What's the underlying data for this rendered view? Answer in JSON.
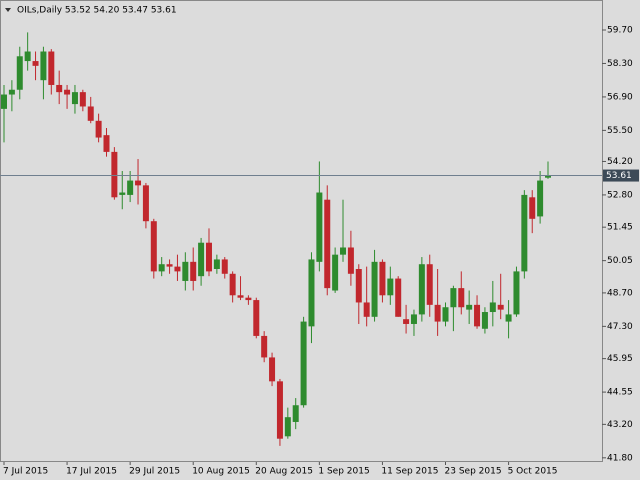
{
  "chart_data": {
    "type": "candlestick",
    "title": "OILs,Daily 53.52 54.20 53.47 53.61",
    "categories": [
      "7 Jul 2015",
      null,
      null,
      null,
      null,
      null,
      null,
      null,
      "17 Jul 2015",
      null,
      null,
      null,
      null,
      null,
      null,
      null,
      "29 Jul 2015",
      null,
      null,
      null,
      null,
      null,
      null,
      null,
      "10 Aug 2015",
      null,
      null,
      null,
      null,
      null,
      null,
      null,
      "20 Aug 2015",
      null,
      null,
      null,
      null,
      null,
      null,
      null,
      "1 Sep 2015",
      null,
      null,
      null,
      null,
      null,
      null,
      null,
      "11 Sep 2015",
      null,
      null,
      null,
      null,
      null,
      null,
      null,
      "23 Sep 2015",
      null,
      null,
      null,
      null,
      null,
      null,
      null,
      "5 Oct 2015",
      null,
      null,
      null,
      null,
      null
    ],
    "open": [
      56.4,
      57.0,
      57.2,
      58.4,
      58.4,
      57.6,
      58.8,
      57.4,
      57.2,
      56.6,
      57.1,
      56.5,
      55.9,
      55.3,
      54.6,
      52.8,
      52.8,
      53.4,
      53.2,
      51.7,
      49.6,
      49.9,
      49.8,
      49.2,
      50.0,
      49.4,
      50.8,
      49.7,
      50.1,
      49.5,
      48.6,
      48.5,
      48.4,
      46.9,
      46.0,
      45.0,
      42.7,
      43.3,
      44.0,
      47.3,
      50.0,
      52.6,
      48.8,
      50.3,
      50.6,
      49.7,
      48.3,
      47.7,
      50.0,
      48.6,
      49.3,
      47.6,
      47.4,
      47.8,
      49.9,
      48.2,
      47.5,
      48.1,
      48.9,
      48.0,
      48.2,
      47.2,
      47.9,
      48.2,
      47.5,
      47.8,
      49.6,
      52.7,
      51.9,
      53.52
    ],
    "high": [
      57.4,
      57.6,
      59.0,
      59.6,
      58.8,
      59.0,
      58.9,
      58.0,
      57.4,
      57.4,
      57.2,
      56.9,
      56.2,
      55.6,
      54.8,
      53.8,
      53.8,
      54.3,
      53.3,
      51.8,
      50.2,
      50.1,
      50.3,
      50.4,
      50.6,
      51.0,
      51.4,
      50.3,
      50.2,
      49.6,
      49.4,
      48.6,
      48.5,
      47.1,
      46.2,
      45.1,
      43.9,
      44.3,
      47.7,
      50.4,
      54.2,
      53.2,
      50.6,
      52.6,
      51.3,
      49.9,
      49.8,
      50.5,
      50.1,
      49.8,
      49.4,
      48.2,
      48.0,
      50.2,
      50.3,
      49.7,
      48.3,
      49.0,
      49.6,
      48.8,
      48.6,
      48.1,
      49.2,
      49.5,
      48.4,
      49.8,
      53.0,
      53.0,
      53.8,
      54.2
    ],
    "low": [
      55.0,
      56.3,
      56.8,
      58.0,
      57.6,
      56.8,
      57.0,
      56.6,
      56.4,
      56.2,
      56.3,
      55.8,
      55.0,
      54.4,
      52.6,
      52.2,
      52.5,
      52.4,
      51.4,
      49.3,
      49.4,
      49.5,
      49.2,
      48.8,
      48.8,
      49.0,
      49.4,
      49.5,
      49.3,
      48.3,
      48.4,
      48.2,
      46.8,
      45.8,
      44.8,
      42.3,
      42.6,
      43.0,
      43.9,
      46.6,
      49.6,
      48.6,
      48.7,
      50.0,
      49.0,
      47.4,
      47.3,
      47.5,
      48.3,
      48.2,
      47.7,
      47.0,
      46.9,
      47.5,
      47.7,
      46.9,
      47.3,
      47.1,
      47.8,
      47.4,
      47.2,
      47.0,
      47.3,
      47.6,
      46.8,
      47.7,
      49.3,
      51.2,
      51.6,
      53.47
    ],
    "close": [
      57.0,
      57.2,
      58.6,
      58.8,
      58.2,
      58.8,
      57.4,
      57.1,
      57.0,
      57.1,
      56.5,
      55.9,
      55.2,
      54.6,
      52.7,
      52.9,
      53.4,
      53.2,
      51.7,
      49.6,
      49.9,
      49.8,
      49.6,
      50.0,
      49.2,
      50.8,
      49.6,
      50.1,
      49.5,
      48.6,
      48.5,
      48.4,
      46.9,
      46.0,
      45.0,
      42.6,
      43.5,
      44.0,
      47.5,
      50.1,
      52.9,
      48.9,
      50.3,
      50.6,
      49.5,
      48.3,
      47.7,
      50.0,
      48.6,
      49.3,
      47.7,
      47.4,
      47.8,
      49.9,
      48.2,
      47.5,
      48.1,
      48.9,
      48.1,
      48.2,
      47.3,
      47.9,
      48.3,
      48.0,
      47.8,
      49.6,
      52.8,
      51.8,
      53.4,
      53.61
    ],
    "up_color": "#2e8b2e",
    "down_color": "#c1272d",
    "ylim": [
      41.625,
      60.955
    ],
    "yticks": [
      {
        "value": 59.7,
        "label": "59.70"
      },
      {
        "value": 58.3,
        "label": "58.30"
      },
      {
        "value": 56.9,
        "label": "56.90"
      },
      {
        "value": 55.5,
        "label": "55.50"
      },
      {
        "value": 54.2,
        "label": "54.20"
      },
      {
        "value": 52.8,
        "label": "52.80"
      },
      {
        "value": 51.45,
        "label": "51.45"
      },
      {
        "value": 50.05,
        "label": "50.05"
      },
      {
        "value": 48.7,
        "label": "48.70"
      },
      {
        "value": 47.3,
        "label": "47.30"
      },
      {
        "value": 45.95,
        "label": "45.95"
      },
      {
        "value": 44.55,
        "label": "44.55"
      },
      {
        "value": 43.2,
        "label": "43.20"
      },
      {
        "value": 41.8,
        "label": "41.80"
      }
    ],
    "last_price": {
      "value": 53.61,
      "label": "53.61"
    }
  }
}
